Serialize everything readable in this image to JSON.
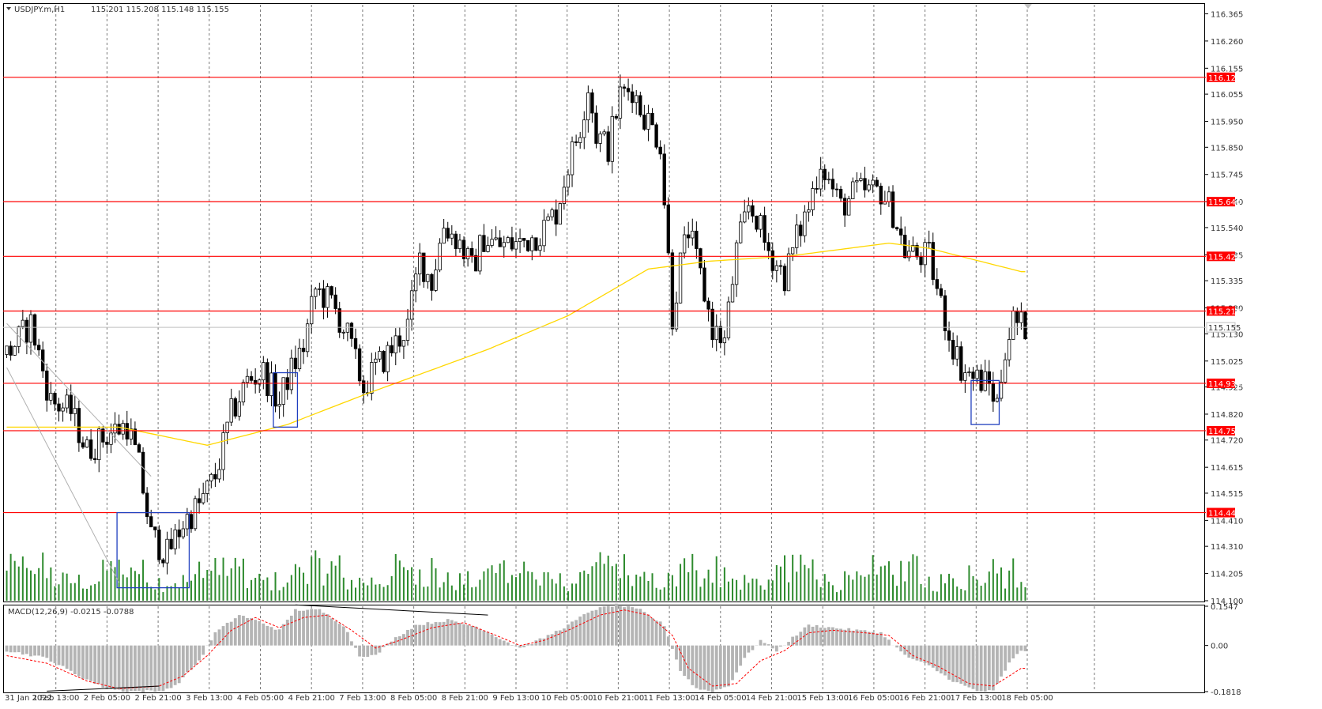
{
  "header": {
    "symbol": "USDJPY.m,H1",
    "ohlc": "115.201 115.208 115.148 115.155"
  },
  "colors": {
    "level_line": "#ff0000",
    "level_label_bg": "#ff0000",
    "ma_line": "#ffd700",
    "volume": "#2e8b2e",
    "macd_hist": "#b4b4b4",
    "macd_signal": "#ff0000",
    "box": "#1f3fbf",
    "grid": "#7a7a7a",
    "candle": "#000000"
  },
  "chart_data": [
    {
      "type": "candlestick",
      "name": "price",
      "ylim": [
        114.1,
        116.4
      ],
      "y_ticks": [
        "116.365",
        "116.260",
        "116.155",
        "116.055",
        "115.950",
        "115.850",
        "115.745",
        "115.640",
        "115.540",
        "115.435",
        "115.335",
        "115.230",
        "115.130",
        "115.025",
        "114.925",
        "114.820",
        "114.720",
        "114.615",
        "114.515",
        "114.410",
        "114.310",
        "114.205",
        "114.100"
      ],
      "current_price": "115.155",
      "horizontal_levels": [
        "116.120",
        "115.640",
        "115.429",
        "115.218",
        "114.939",
        "114.756",
        "114.440"
      ],
      "x_tick_labels": [
        "31 Jan 2022",
        "1 Feb 13:00",
        "2 Feb 05:00",
        "2 Feb 21:00",
        "3 Feb 13:00",
        "4 Feb 05:00",
        "4 Feb 21:00",
        "7 Feb 13:00",
        "8 Feb 05:00",
        "8 Feb 21:00",
        "9 Feb 13:00",
        "10 Feb 05:00",
        "10 Feb 21:00",
        "11 Feb 13:00",
        "14 Feb 05:00",
        "14 Feb 21:00",
        "15 Feb 13:00",
        "16 Feb 05:00",
        "16 Feb 21:00",
        "17 Feb 13:00",
        "18 Feb 05:00"
      ],
      "close_path": [
        [
          0,
          115.05
        ],
        [
          6,
          115.17
        ],
        [
          11,
          114.87
        ],
        [
          16,
          114.83
        ],
        [
          20,
          114.68
        ],
        [
          26,
          114.75
        ],
        [
          30,
          114.78
        ],
        [
          33,
          114.62
        ],
        [
          36,
          114.35
        ],
        [
          40,
          114.28
        ],
        [
          44,
          114.4
        ],
        [
          48,
          114.47
        ],
        [
          52,
          114.58
        ],
        [
          56,
          114.82
        ],
        [
          60,
          114.95
        ],
        [
          64,
          114.98
        ],
        [
          68,
          114.86
        ],
        [
          70,
          114.96
        ],
        [
          74,
          115.08
        ],
        [
          77,
          115.3
        ],
        [
          81,
          115.25
        ],
        [
          85,
          115.12
        ],
        [
          89,
          114.92
        ],
        [
          92,
          115.0
        ],
        [
          95,
          115.05
        ],
        [
          100,
          115.16
        ],
        [
          103,
          115.42
        ],
        [
          106,
          115.33
        ],
        [
          109,
          115.55
        ],
        [
          113,
          115.48
        ],
        [
          116,
          115.38
        ],
        [
          119,
          115.5
        ],
        [
          123,
          115.47
        ],
        [
          128,
          115.48
        ],
        [
          133,
          115.52
        ],
        [
          137,
          115.6
        ],
        [
          140,
          115.78
        ],
        [
          143,
          115.93
        ],
        [
          145,
          116.09
        ],
        [
          147,
          115.9
        ],
        [
          150,
          115.85
        ],
        [
          153,
          116.05
        ],
        [
          156,
          116.08
        ],
        [
          158,
          116.0
        ],
        [
          160,
          115.95
        ],
        [
          163,
          115.87
        ],
        [
          166,
          115.2
        ],
        [
          168,
          115.4
        ],
        [
          170,
          115.53
        ],
        [
          173,
          115.35
        ],
        [
          176,
          115.15
        ],
        [
          179,
          115.1
        ],
        [
          182,
          115.45
        ],
        [
          185,
          115.62
        ],
        [
          187,
          115.58
        ],
        [
          189,
          115.48
        ],
        [
          192,
          115.4
        ],
        [
          194,
          115.35
        ],
        [
          197,
          115.5
        ],
        [
          200,
          115.62
        ],
        [
          203,
          115.8
        ],
        [
          205,
          115.72
        ],
        [
          208,
          115.62
        ],
        [
          212,
          115.68
        ],
        [
          215,
          115.68
        ],
        [
          218,
          115.68
        ],
        [
          221,
          115.6
        ],
        [
          224,
          115.45
        ],
        [
          227,
          115.43
        ],
        [
          230,
          115.43
        ],
        [
          232,
          115.3
        ],
        [
          235,
          115.13
        ],
        [
          238,
          115.0
        ],
        [
          241,
          114.96
        ],
        [
          243,
          114.95
        ],
        [
          245,
          114.93
        ],
        [
          247,
          114.86
        ],
        [
          249,
          115.08
        ],
        [
          251,
          115.18
        ],
        [
          253,
          115.16
        ]
      ],
      "ma_path": [
        [
          0,
          114.77
        ],
        [
          28,
          114.77
        ],
        [
          50,
          114.7
        ],
        [
          70,
          114.78
        ],
        [
          90,
          114.9
        ],
        [
          120,
          115.07
        ],
        [
          140,
          115.2
        ],
        [
          160,
          115.38
        ],
        [
          175,
          115.41
        ],
        [
          195,
          115.43
        ],
        [
          210,
          115.46
        ],
        [
          220,
          115.48
        ],
        [
          230,
          115.46
        ],
        [
          253,
          115.37
        ]
      ],
      "blue_boxes": [
        {
          "x0": 28,
          "x1": 45,
          "y0": 114.15,
          "y1": 114.44
        },
        {
          "x0": 67,
          "x1": 72,
          "y0": 114.77,
          "y1": 114.98
        },
        {
          "x0": 241,
          "x1": 247,
          "y0": 114.78,
          "y1": 114.95
        }
      ]
    },
    {
      "type": "bar",
      "name": "volume",
      "ylim": [
        0,
        100
      ],
      "peak_hint": "volume bars below price panel"
    },
    {
      "type": "bar",
      "name": "MACD(12,26,9)",
      "label": "MACD(12,26,9) -0.0215 -0.0788",
      "ylim": [
        -0.1818,
        0.1547
      ],
      "y_ticks": [
        "0.1547",
        "0.00",
        "-0.1818"
      ],
      "macd_path": [
        [
          0,
          -0.02
        ],
        [
          10,
          -0.05
        ],
        [
          18,
          -0.12
        ],
        [
          25,
          -0.17
        ],
        [
          30,
          -0.18
        ],
        [
          38,
          -0.18
        ],
        [
          42,
          -0.16
        ],
        [
          48,
          -0.06
        ],
        [
          52,
          0.05
        ],
        [
          58,
          0.12
        ],
        [
          62,
          0.1
        ],
        [
          68,
          0.06
        ],
        [
          72,
          0.14
        ],
        [
          78,
          0.14
        ],
        [
          84,
          0.08
        ],
        [
          88,
          -0.04
        ],
        [
          92,
          -0.04
        ],
        [
          96,
          0.02
        ],
        [
          102,
          0.08
        ],
        [
          110,
          0.1
        ],
        [
          118,
          0.07
        ],
        [
          124,
          0.02
        ],
        [
          128,
          -0.01
        ],
        [
          134,
          0.03
        ],
        [
          140,
          0.08
        ],
        [
          146,
          0.14
        ],
        [
          152,
          0.16
        ],
        [
          158,
          0.14
        ],
        [
          164,
          0.08
        ],
        [
          168,
          -0.1
        ],
        [
          172,
          -0.17
        ],
        [
          176,
          -0.18
        ],
        [
          180,
          -0.16
        ],
        [
          184,
          -0.05
        ],
        [
          188,
          0.02
        ],
        [
          192,
          -0.02
        ],
        [
          196,
          0.03
        ],
        [
          200,
          0.08
        ],
        [
          206,
          0.07
        ],
        [
          212,
          0.06
        ],
        [
          218,
          0.05
        ],
        [
          224,
          -0.04
        ],
        [
          230,
          -0.08
        ],
        [
          236,
          -0.14
        ],
        [
          242,
          -0.18
        ],
        [
          246,
          -0.18
        ],
        [
          250,
          -0.07
        ],
        [
          253,
          -0.02
        ]
      ],
      "signal_path": [
        [
          0,
          -0.04
        ],
        [
          10,
          -0.07
        ],
        [
          20,
          -0.14
        ],
        [
          28,
          -0.17
        ],
        [
          38,
          -0.16
        ],
        [
          44,
          -0.12
        ],
        [
          50,
          -0.04
        ],
        [
          56,
          0.06
        ],
        [
          62,
          0.11
        ],
        [
          68,
          0.07
        ],
        [
          74,
          0.11
        ],
        [
          80,
          0.12
        ],
        [
          86,
          0.06
        ],
        [
          92,
          -0.01
        ],
        [
          98,
          0.02
        ],
        [
          106,
          0.07
        ],
        [
          114,
          0.09
        ],
        [
          122,
          0.04
        ],
        [
          128,
          -0.0
        ],
        [
          134,
          0.02
        ],
        [
          140,
          0.06
        ],
        [
          148,
          0.12
        ],
        [
          154,
          0.14
        ],
        [
          160,
          0.12
        ],
        [
          166,
          0.04
        ],
        [
          170,
          -0.09
        ],
        [
          176,
          -0.16
        ],
        [
          182,
          -0.15
        ],
        [
          188,
          -0.06
        ],
        [
          194,
          -0.02
        ],
        [
          200,
          0.05
        ],
        [
          206,
          0.06
        ],
        [
          214,
          0.05
        ],
        [
          220,
          0.04
        ],
        [
          226,
          -0.04
        ],
        [
          232,
          -0.08
        ],
        [
          240,
          -0.15
        ],
        [
          246,
          -0.16
        ],
        [
          253,
          -0.09
        ]
      ]
    }
  ]
}
